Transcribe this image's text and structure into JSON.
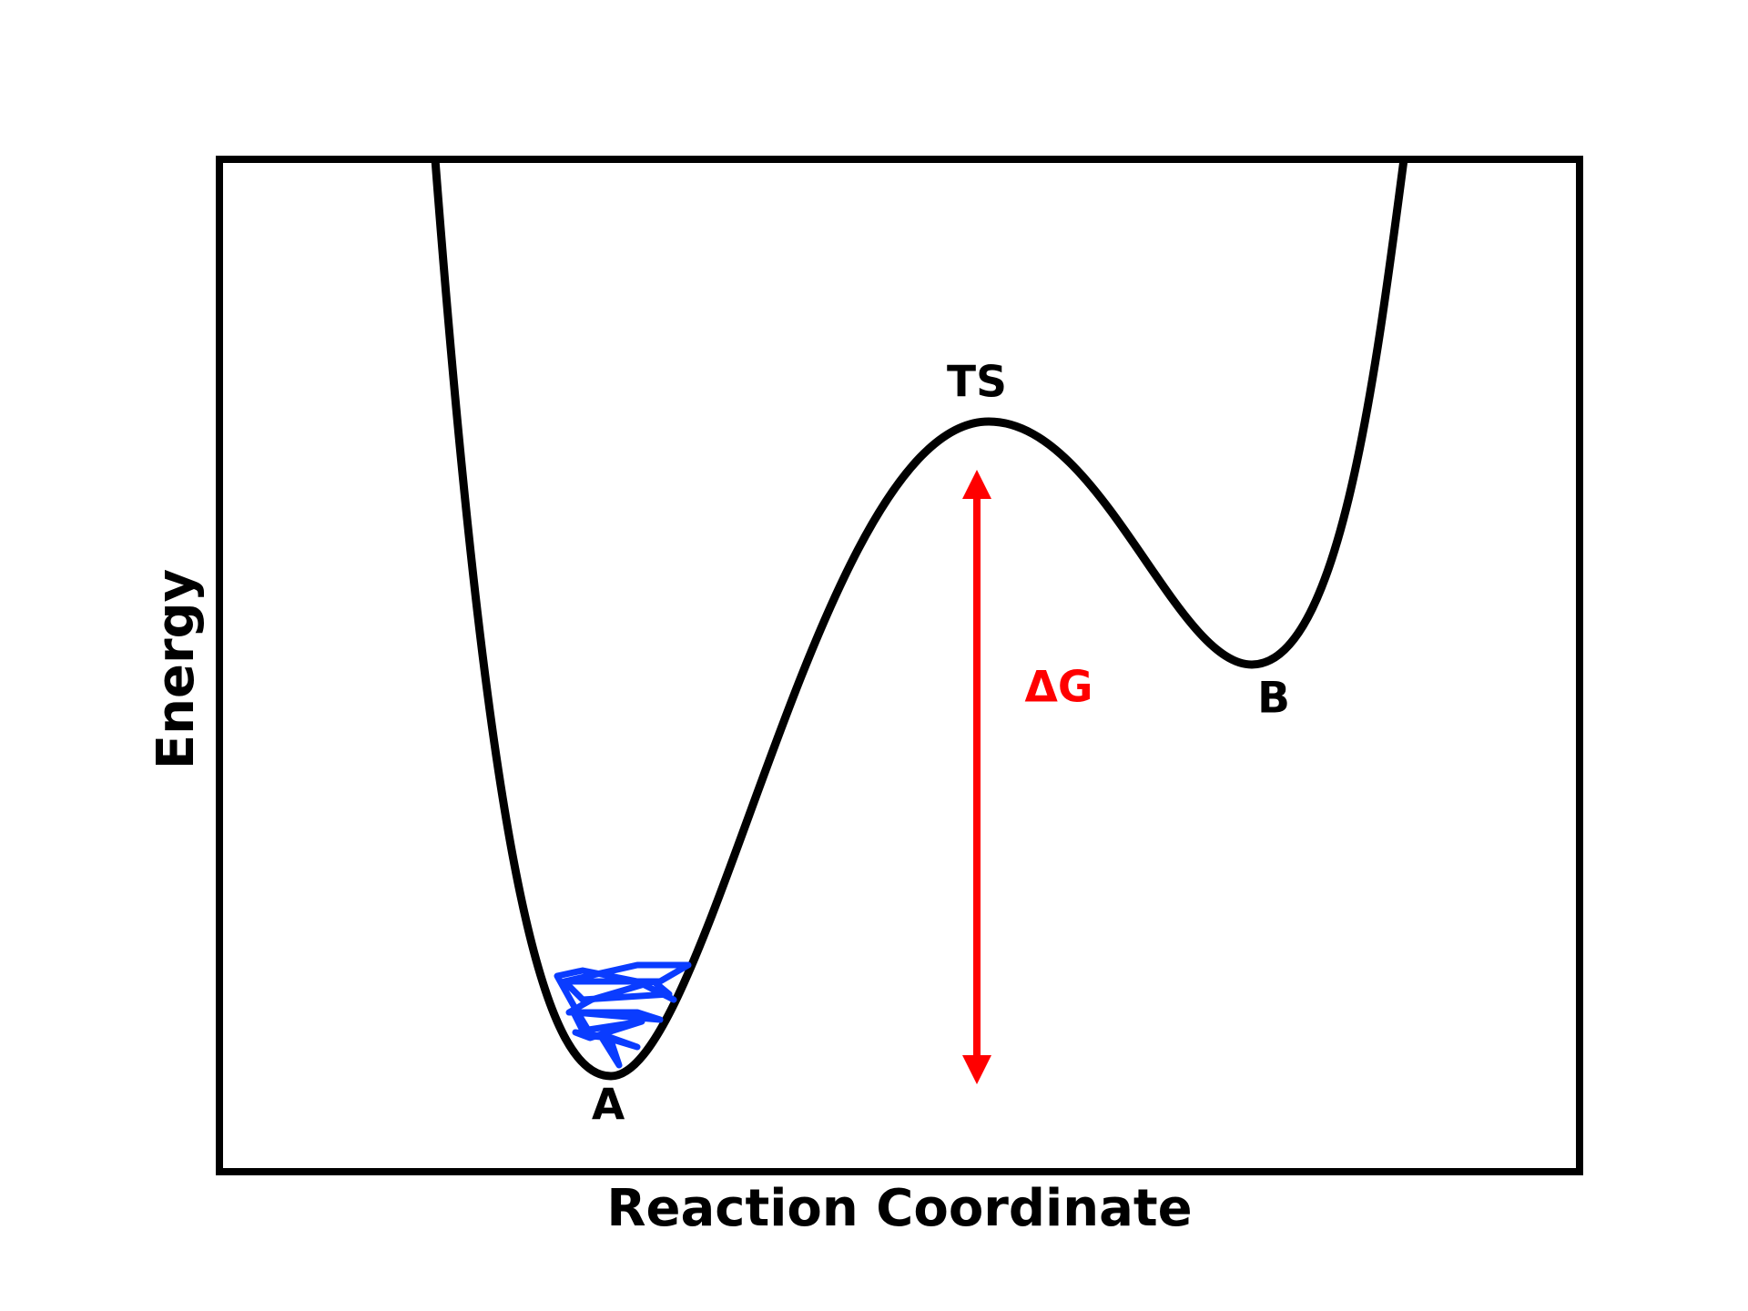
{
  "axes": {
    "x_label": "Reaction Coordinate",
    "y_label": "Energy"
  },
  "labels": {
    "transition_state": "TS",
    "state_a": "A",
    "state_b": "B",
    "barrier": "ΔG"
  }
}
